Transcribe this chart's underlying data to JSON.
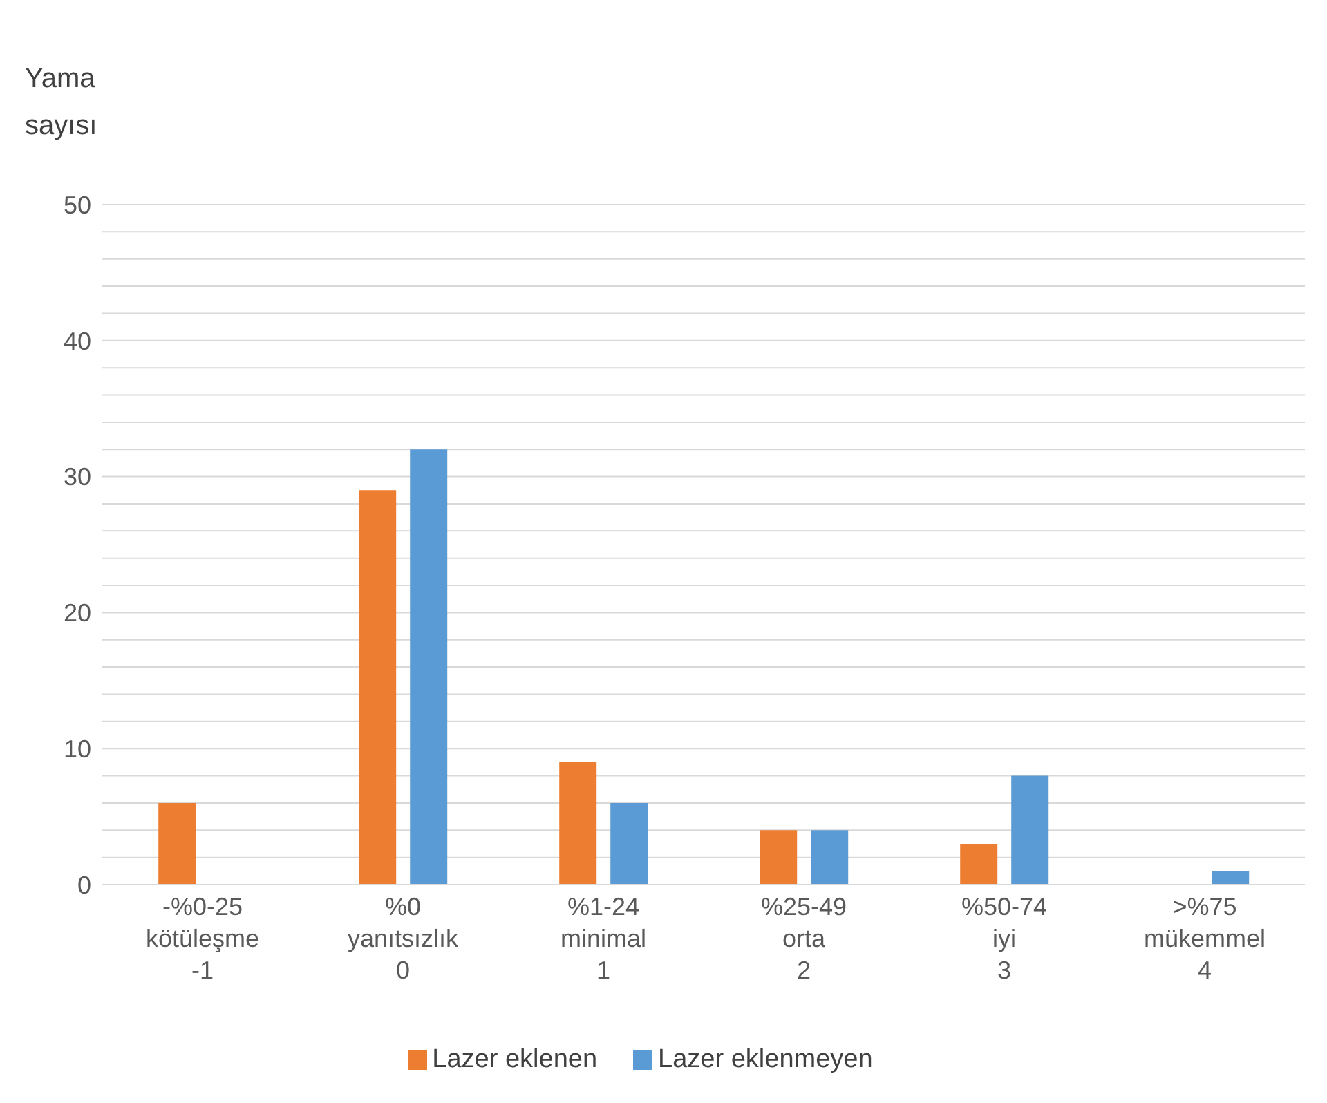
{
  "chart_data": {
    "type": "bar",
    "ylabel": "Yama\nsayısı",
    "categories": [
      "-%0-25\nkötüleşme\n-1",
      "%0\nyanıtsızlık\n0",
      "%1-24\nminimal\n1",
      "%25-49\norta\n2",
      "%50-74\niyi\n3",
      ">%75\nmükemmel\n4"
    ],
    "series": [
      {
        "name": "Lazer eklenen",
        "color": "#ed7d31",
        "values": [
          6,
          29,
          9,
          4,
          3,
          0
        ]
      },
      {
        "name": "Lazer eklenmeyen",
        "color": "#5b9bd5",
        "values": [
          0,
          32,
          6,
          4,
          8,
          1
        ]
      }
    ],
    "ylim": [
      0,
      50
    ],
    "yticks": [
      0,
      {
        "value": 2,
        "label": null
      },
      {
        "value": 4,
        "label": null
      },
      {
        "value": 6,
        "label": null
      },
      {
        "value": 8,
        "label": null
      },
      10,
      {
        "value": 12,
        "label": null
      },
      {
        "value": 14,
        "label": null
      },
      {
        "value": 16,
        "label": null
      },
      {
        "value": 18,
        "label": null
      },
      20,
      {
        "value": 22,
        "label": null
      },
      {
        "value": 24,
        "label": null
      },
      {
        "value": 26,
        "label": null
      },
      {
        "value": 28,
        "label": null
      },
      30,
      {
        "value": 32,
        "label": null
      },
      {
        "value": 34,
        "label": null
      },
      {
        "value": 36,
        "label": null
      },
      {
        "value": 38,
        "label": null
      },
      40,
      {
        "value": 42,
        "label": null
      },
      {
        "value": 44,
        "label": null
      },
      {
        "value": 46,
        "label": null
      },
      {
        "value": 48,
        "label": null
      },
      50
    ],
    "grid": "y",
    "legend": "bottom"
  }
}
